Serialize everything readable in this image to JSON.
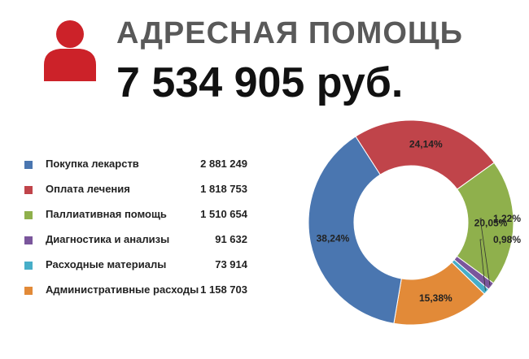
{
  "header": {
    "title": "АДРЕСНАЯ ПОМОЩЬ",
    "amount": "7 534 905  руб."
  },
  "colors": {
    "icon": "#cc2229",
    "title": "#595959"
  },
  "legend": [
    {
      "label": "Покупка лекарств",
      "value": "2 881 249",
      "color": "#4a76b0"
    },
    {
      "label": "Оплата лечения",
      "value": "1 818 753",
      "color": "#c0444a"
    },
    {
      "label": "Паллиативная помощь",
      "value": "1 510 654",
      "color": "#8fb04c"
    },
    {
      "label": "Диагностика и анализы",
      "value": "91 632",
      "color": "#7a569c"
    },
    {
      "label": "Расходные материалы",
      "value": "73 914",
      "color": "#47aec8"
    },
    {
      "label": "Административные расходы",
      "value": "1 158 703",
      "color": "#e28a38"
    }
  ],
  "chart_data": {
    "type": "pie",
    "style": "donut",
    "categories": [
      "Покупка лекарств",
      "Оплата лечения",
      "Паллиативная помощь",
      "Диагностика и анализы",
      "Расходные материалы",
      "Административные расходы"
    ],
    "values": [
      2881249,
      1818753,
      1510654,
      91632,
      73914,
      1158703
    ],
    "percent_labels": [
      "38,24%",
      "24,14%",
      "20,05%",
      "1,22%",
      "0,98%",
      "15,38%"
    ],
    "colors": [
      "#4a76b0",
      "#c0444a",
      "#8fb04c",
      "#7a569c",
      "#47aec8",
      "#e28a38"
    ],
    "title": ""
  }
}
